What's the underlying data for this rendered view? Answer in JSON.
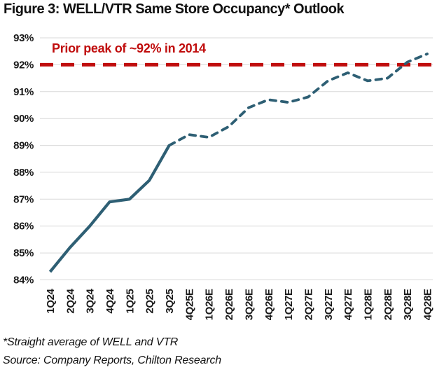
{
  "title": "Figure 3: WELL/VTR Same Store Occupancy* Outlook",
  "footnotes": [
    "*Straight average of WELL and VTR",
    "Source: Company Reports, Chilton Research"
  ],
  "chart_data": {
    "type": "line",
    "title": "Figure 3: WELL/VTR Same Store Occupancy* Outlook",
    "categories": [
      "1Q24",
      "2Q24",
      "3Q24",
      "4Q24",
      "1Q25",
      "2Q25",
      "3Q25",
      "4Q25E",
      "1Q26E",
      "2Q26E",
      "3Q26E",
      "4Q26E",
      "1Q27E",
      "2Q27E",
      "3Q27E",
      "4Q27E",
      "1Q28E",
      "2Q28E",
      "3Q28E",
      "4Q28E"
    ],
    "series": [
      {
        "name": "WELL/VTR same store occupancy (straight average)",
        "values": [
          84.3,
          85.2,
          86.0,
          86.9,
          87.0,
          87.7,
          89.0,
          89.4,
          89.3,
          89.7,
          90.4,
          90.7,
          90.6,
          90.8,
          91.4,
          91.7,
          91.4,
          91.5,
          92.1,
          92.4
        ],
        "color": "#2e5f74",
        "actual_through": "3Q25",
        "actual_style": "solid",
        "estimate_style": "dashed"
      }
    ],
    "reference_line": {
      "value": 92,
      "label": "Prior peak of ~92% in 2014",
      "color": "#c00d0d",
      "style": "dashed"
    },
    "ylim": [
      84,
      93
    ],
    "ytick_step": 1,
    "ytick_format": "percent",
    "xlabel": "",
    "ylabel": "",
    "grid": "horizontal",
    "legend": "none",
    "x_tick_rotation": -90
  }
}
